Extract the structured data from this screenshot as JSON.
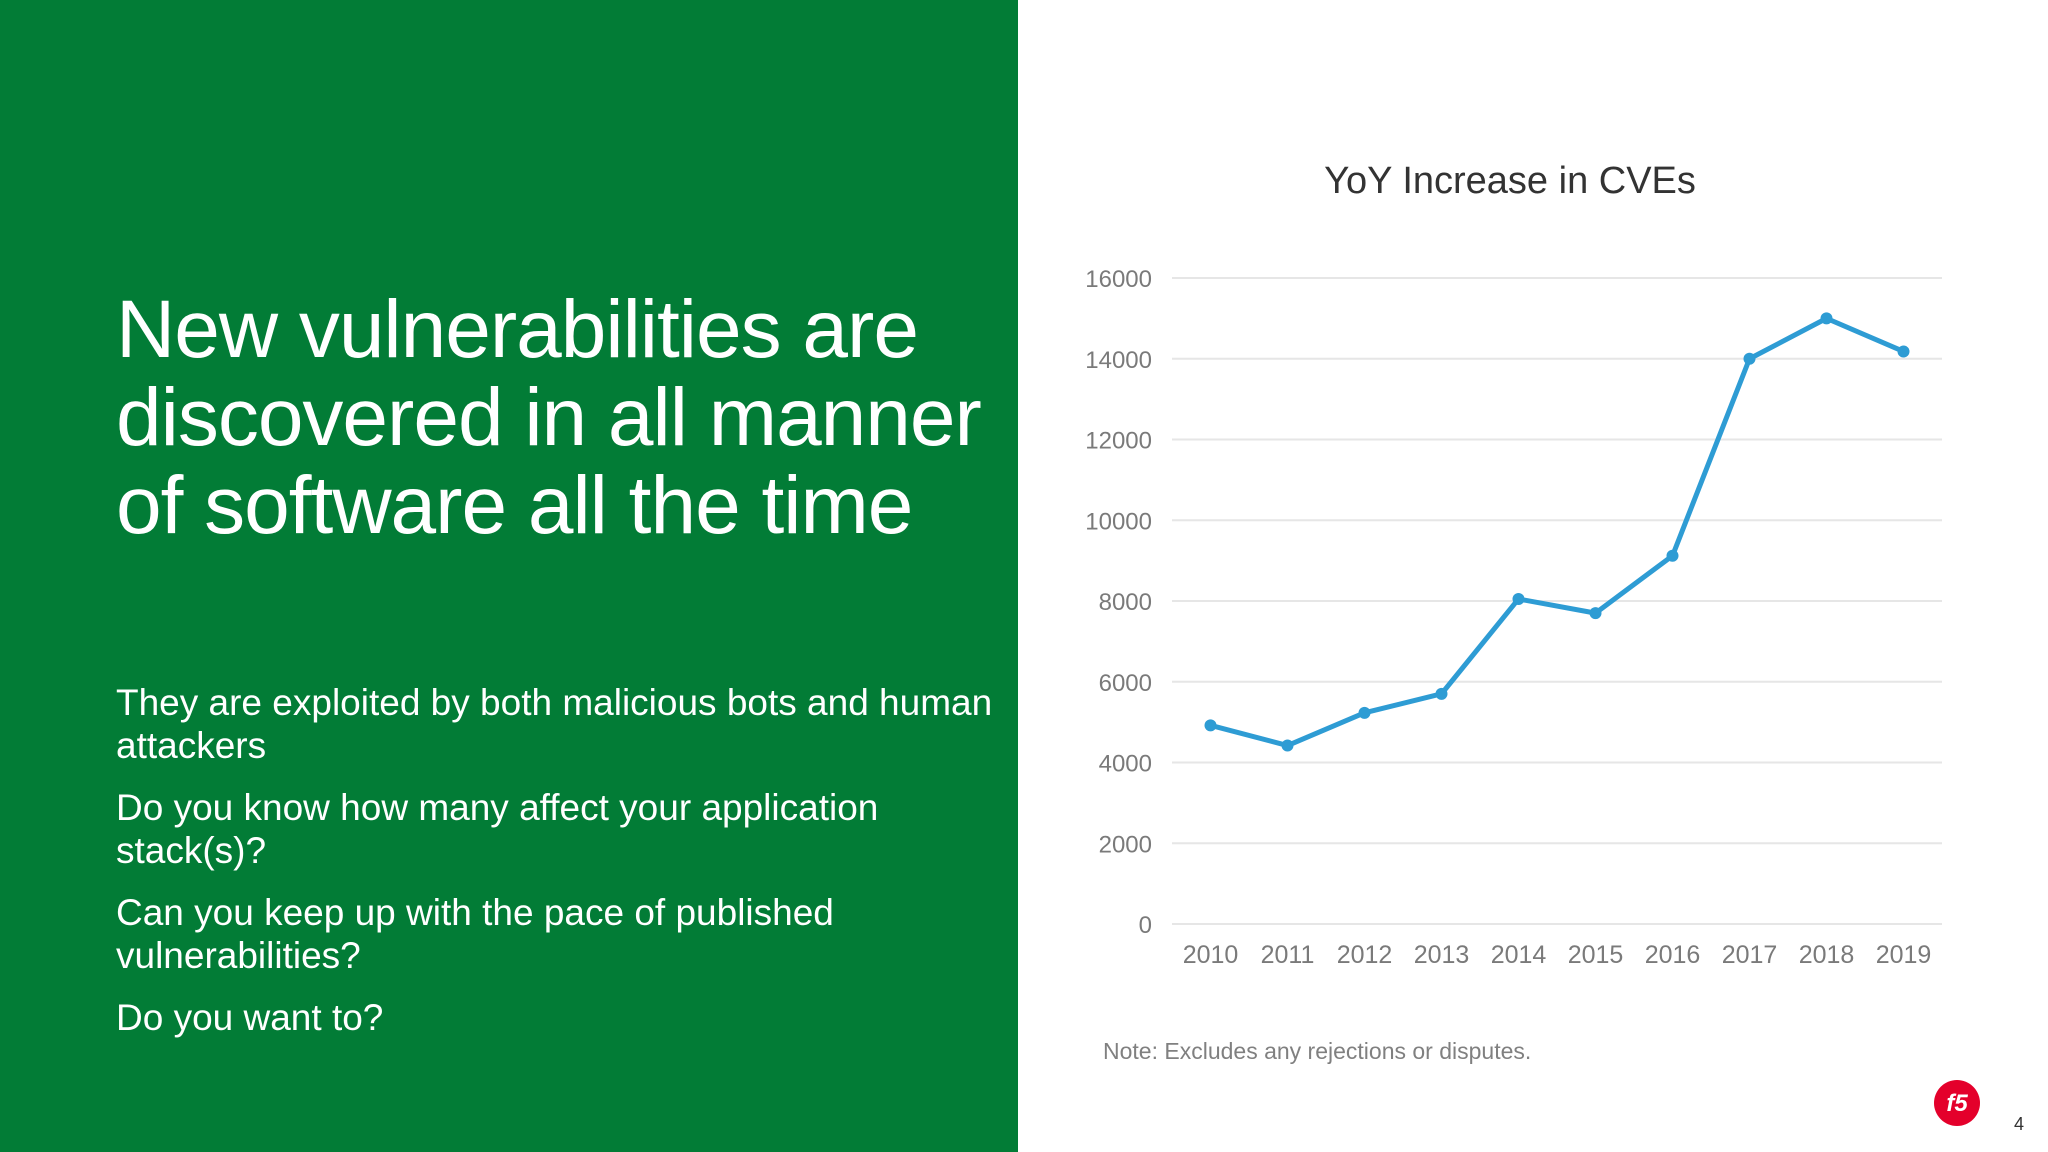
{
  "slide": {
    "headline": "New vulnerabilities are discovered in all manner of software all the time",
    "bullets": [
      "They are exploited by both malicious bots and human attackers",
      "Do you know how many affect your application stack(s)?",
      "Can you keep up with the pace of published vulnerabilities?",
      "Do you want to?"
    ],
    "note": "Note: Excludes any rejections or disputes.",
    "page_number": "4",
    "logo_text": "f5"
  },
  "colors": {
    "panel": "#027c36",
    "line": "#2e9cd4",
    "grid": "#e6e6e6",
    "tick_text": "#7a7a7a",
    "logo": "#e4002b"
  },
  "chart_data": {
    "type": "line",
    "title": "YoY Increase in CVEs",
    "categories": [
      "2010",
      "2011",
      "2012",
      "2013",
      "2014",
      "2015",
      "2016",
      "2017",
      "2018",
      "2019"
    ],
    "series": [
      {
        "name": "CVEs",
        "values": [
          4920,
          4420,
          5230,
          5700,
          8050,
          7700,
          9120,
          14000,
          15000,
          14180
        ]
      }
    ],
    "yticks": [
      0,
      2000,
      4000,
      6000,
      8000,
      10000,
      12000,
      14000,
      16000
    ],
    "ylim": [
      0,
      16000
    ],
    "xlabel": "",
    "ylabel": "",
    "grid": true,
    "legend": "none"
  }
}
